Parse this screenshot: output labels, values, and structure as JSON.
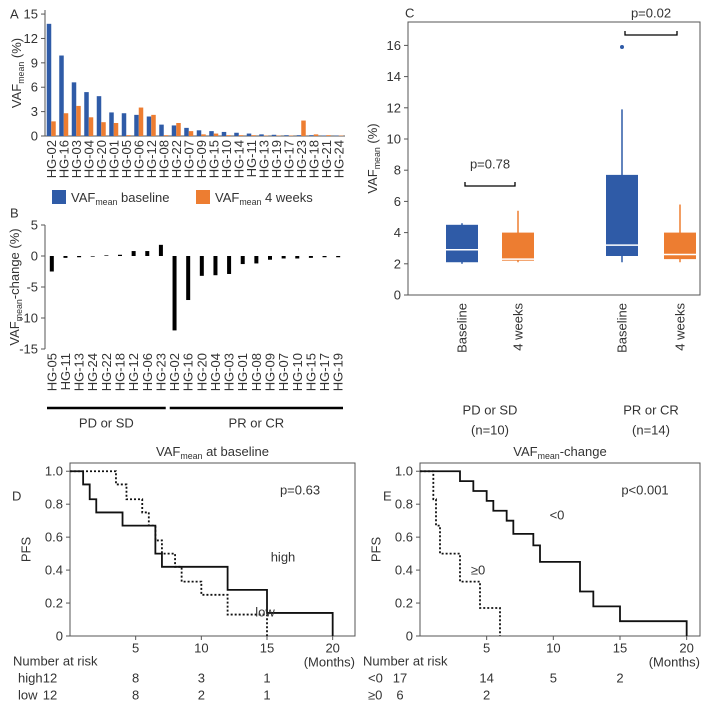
{
  "chart_data": [
    {
      "type": "bar",
      "label": "A",
      "ylabel": {
        "text": "VAF",
        "sub": "mean",
        "after": " (%)"
      },
      "categories": [
        "HG-02",
        "HG-16",
        "HG-03",
        "HG-04",
        "HG-20",
        "HG-01",
        "HG-05",
        "HG-06",
        "HG-12",
        "HG-08",
        "HG-22",
        "HG-07",
        "HG-09",
        "HG-15",
        "HG-10",
        "HG-14",
        "HG-11",
        "HG-13",
        "HG-19",
        "HG-17",
        "HG-23",
        "HG-18",
        "HG-21",
        "HG-24"
      ],
      "series": [
        {
          "name": {
            "text": "VAF",
            "sub": "mean",
            "after": " baseline"
          },
          "color": "#2f5ba7",
          "values": [
            13.8,
            9.9,
            6.6,
            5.4,
            4.9,
            2.9,
            2.8,
            2.6,
            2.4,
            1.4,
            1.3,
            1.0,
            0.7,
            0.6,
            0.5,
            0.4,
            0.3,
            0.2,
            0.15,
            0.1,
            0.1,
            0.1,
            0.05,
            0.05
          ]
        },
        {
          "name": {
            "text": "VAF",
            "sub": "mean",
            "after": " 4 weeks"
          },
          "color": "#ed7d31",
          "values": [
            1.8,
            2.8,
            3.7,
            2.3,
            1.7,
            1.6,
            0.1,
            3.5,
            2.6,
            0.1,
            1.6,
            0.6,
            0.2,
            0.3,
            0.1,
            0.1,
            0.1,
            0.05,
            0.05,
            0.05,
            1.9,
            0.2,
            0.1,
            0.05
          ]
        }
      ],
      "ylim": [
        0,
        15.5
      ],
      "yticks": [
        0,
        3,
        6,
        9,
        12,
        15
      ],
      "legend": "bottom"
    },
    {
      "type": "bar",
      "label": "B",
      "ylabel": {
        "text": "VAF",
        "sub": "mean",
        "after": "-change (%)"
      },
      "color": "#000000",
      "groups": [
        {
          "label": "PD or SD",
          "categories": [
            "HG-05",
            "HG-11",
            "HG-13",
            "HG-24",
            "HG-22",
            "HG-18",
            "HG-12",
            "HG-06",
            "HG-23"
          ],
          "values": [
            -2.5,
            -0.3,
            -0.2,
            -0.1,
            0.1,
            0.2,
            0.8,
            0.8,
            1.8
          ]
        },
        {
          "label": "PR or CR",
          "categories": [
            "HG-02",
            "HG-16",
            "HG-20",
            "HG-04",
            "HG-03",
            "HG-01",
            "HG-08",
            "HG-09",
            "HG-07",
            "HG-10",
            "HG-15",
            "HG-17",
            "HG-19"
          ],
          "values": [
            -12,
            -7.1,
            -3.2,
            -3.1,
            -2.9,
            -1.3,
            -1.2,
            -0.6,
            -0.4,
            -0.4,
            -0.3,
            -0.2,
            -0.2
          ]
        }
      ],
      "ylim": [
        -15,
        5
      ],
      "yticks": [
        5,
        0,
        -5,
        -10,
        -15
      ]
    },
    {
      "type": "box",
      "label": "C",
      "ylabel": {
        "text": "VAF",
        "sub": "mean",
        "after": " (%)"
      },
      "ylim": [
        0,
        17.5
      ],
      "yticks": [
        0,
        2,
        4,
        6,
        8,
        10,
        12,
        14,
        16
      ],
      "groups": [
        {
          "label": "PD or SD",
          "n": "(n=10)",
          "p": "p=0.78",
          "boxes": [
            {
              "label": "Baseline",
              "color": "#2f5ba7",
              "min": 2.0,
              "q1": 2.1,
              "median": 2.9,
              "q3": 4.5,
              "max": 4.6
            },
            {
              "label": "4 weeks",
              "color": "#ed7d31",
              "min": 2.1,
              "q1": 2.2,
              "median": 2.3,
              "q3": 4.0,
              "max": 5.4
            }
          ]
        },
        {
          "label": "PR or CR",
          "n": "(n=14)",
          "p": "p=0.02",
          "boxes": [
            {
              "label": "Baseline",
              "color": "#2f5ba7",
              "min": 2.1,
              "q1": 2.5,
              "median": 3.2,
              "q3": 7.7,
              "max": 11.9,
              "outliers": [
                15.9
              ]
            },
            {
              "label": "4 weeks",
              "color": "#ed7d31",
              "min": 2.1,
              "q1": 2.3,
              "median": 2.6,
              "q3": 4.0,
              "max": 5.8
            }
          ]
        }
      ]
    },
    {
      "type": "km",
      "label": "D",
      "title": {
        "text": "VAF",
        "sub": "mean",
        "after": " at baseline"
      },
      "p": "p=0.63",
      "xlabel": "(Months)",
      "ylabel": "PFS",
      "xlim": [
        0,
        21.7
      ],
      "xticks": [
        5,
        10,
        15,
        20
      ],
      "ylim": [
        0,
        1.05
      ],
      "yticks": [
        0,
        0.2,
        0.4,
        0.6,
        0.8,
        {
          "value": 1,
          "label": "1.0"
        }
      ],
      "series": [
        {
          "name": "high",
          "style": "solid",
          "x": [
            0,
            1,
            1.5,
            2,
            4,
            6.5,
            7,
            12,
            15,
            20
          ],
          "y": [
            1,
            0.92,
            0.83,
            0.75,
            0.67,
            0.5,
            0.42,
            0.28,
            0.14,
            0
          ]
        },
        {
          "name": "low",
          "style": "dotted",
          "x": [
            0,
            3.5,
            4.3,
            5.5,
            6,
            6.5,
            7,
            8,
            8.5,
            10,
            12,
            15
          ],
          "y": [
            1,
            0.92,
            0.83,
            0.75,
            0.67,
            0.58,
            0.5,
            0.42,
            0.33,
            0.25,
            0.13,
            0
          ]
        }
      ],
      "risk": {
        "title": "Number at risk",
        "rows": [
          {
            "values": [
              12,
              8,
              3,
              1
            ]
          },
          {
            "values": [
              12,
              8,
              2,
              1
            ]
          }
        ]
      }
    },
    {
      "type": "km",
      "label": "E",
      "title": {
        "text": "VAF",
        "sub": "mean",
        "after": "-change"
      },
      "p": "p<0.001",
      "xlabel": "(Months)",
      "ylabel": "PFS",
      "xlim": [
        0,
        21
      ],
      "xticks": [
        5,
        10,
        15,
        20
      ],
      "ylim": [
        0,
        1.05
      ],
      "yticks": [
        0,
        0.2,
        0.4,
        0.6,
        0.8,
        {
          "value": 1,
          "label": "1.0"
        }
      ],
      "series": [
        {
          "name": "<0",
          "style": "solid",
          "x": [
            0,
            3,
            4,
            5,
            5.5,
            6.5,
            7,
            8.5,
            9,
            12,
            13,
            15,
            20
          ],
          "y": [
            1,
            0.94,
            0.88,
            0.82,
            0.76,
            0.7,
            0.62,
            0.55,
            0.45,
            0.27,
            0.18,
            0.09,
            0
          ]
        },
        {
          "name": "≥0",
          "style": "dotted",
          "x": [
            0,
            1,
            1.2,
            1.5,
            3,
            4.5,
            6
          ],
          "y": [
            1,
            0.83,
            0.67,
            0.5,
            0.33,
            0.17,
            0
          ]
        }
      ],
      "risk": {
        "title": "Number at risk",
        "rows": [
          {
            "values": [
              17,
              14,
              5,
              2
            ]
          },
          {
            "values": [
              6,
              2
            ]
          }
        ]
      }
    }
  ]
}
